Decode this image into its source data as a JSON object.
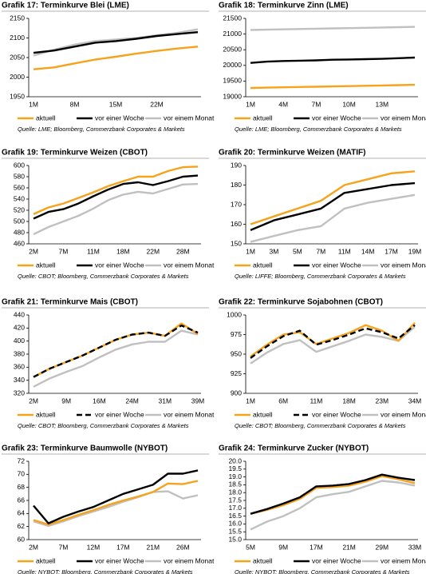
{
  "chart_data": [
    {
      "type": "line",
      "title": "Grafik 17: Terminkurve Blei (LME)",
      "source": "Quelle: LME; Bloomberg, Commerzbank Corporates & Markets",
      "categories": [
        "1M",
        null,
        "8M",
        null,
        "15M",
        null,
        "22M",
        null,
        null
      ],
      "ylim": [
        1950,
        2150
      ],
      "yticks": [
        1950,
        2000,
        2050,
        2100,
        2150
      ],
      "series": [
        {
          "name": "aktuell",
          "color": "#f7a21b",
          "values": [
            2020,
            2025,
            2035,
            2045,
            2052,
            2060,
            2067,
            2073,
            2078
          ]
        },
        {
          "name": "vor einer Woche",
          "color": "#000000",
          "values": [
            2062,
            2068,
            2078,
            2088,
            2092,
            2098,
            2105,
            2110,
            2115
          ]
        },
        {
          "name": "vor einem Monat",
          "color": "#c0c0c0",
          "values": [
            2055,
            2070,
            2083,
            2092,
            2096,
            2100,
            2107,
            2113,
            2122
          ]
        }
      ]
    },
    {
      "type": "line",
      "title": "Grafik 18: Terminkurve Zinn (LME)",
      "source": "Quelle: LME; Bloomberg, Commerzbank Corporates & Markets",
      "categories": [
        "1M",
        null,
        "4M",
        null,
        "7M",
        null,
        "10M",
        null,
        "13M",
        null,
        null
      ],
      "ylim": [
        19000,
        21500
      ],
      "yticks": [
        19000,
        19500,
        20000,
        20500,
        21000,
        21500
      ],
      "series": [
        {
          "name": "aktuell",
          "color": "#f7a21b",
          "values": [
            19280,
            19290,
            19300,
            19310,
            19320,
            19330,
            19340,
            19350,
            19360,
            19370,
            19380
          ]
        },
        {
          "name": "vor einer Woche",
          "color": "#000000",
          "values": [
            20080,
            20120,
            20140,
            20150,
            20160,
            20180,
            20190,
            20200,
            20210,
            20230,
            20250
          ]
        },
        {
          "name": "vor einem Monat",
          "color": "#c0c0c0",
          "values": [
            21130,
            21140,
            21150,
            21160,
            21170,
            21180,
            21190,
            21200,
            21210,
            21220,
            21230
          ]
        }
      ]
    },
    {
      "type": "line",
      "title": "Grafik 19: Terminkurve Weizen (CBOT)",
      "source": "Quelle: CBOT; Bloomberg, Commerzbank Corporates & Markets",
      "categories": [
        "2M",
        null,
        "7M",
        null,
        "11M",
        null,
        "18M",
        null,
        "22M",
        null,
        "28M",
        null
      ],
      "ylim": [
        460,
        600
      ],
      "yticks": [
        460,
        480,
        500,
        520,
        540,
        560,
        580,
        600
      ],
      "series": [
        {
          "name": "aktuell",
          "color": "#f7a21b",
          "values": [
            513,
            525,
            532,
            542,
            552,
            563,
            572,
            580,
            580,
            590,
            597,
            598
          ]
        },
        {
          "name": "vor einer Woche",
          "color": "#000000",
          "values": [
            505,
            517,
            522,
            532,
            545,
            557,
            567,
            570,
            565,
            572,
            580,
            582
          ]
        },
        {
          "name": "vor einem Monat",
          "color": "#c0c0c0",
          "values": [
            477,
            490,
            500,
            510,
            523,
            538,
            548,
            553,
            550,
            558,
            566,
            567
          ]
        }
      ]
    },
    {
      "type": "line",
      "title": "Grafik 20: Terminkurve Weizen (MATIF)",
      "source": "Quelle: LIFFE; Bloomberg, Commerzbank Corporates & Markets",
      "categories": [
        "1M",
        "3M",
        "5M",
        "7M",
        "11M",
        "14M",
        "17M",
        "19M"
      ],
      "ylim": [
        150,
        190
      ],
      "yticks": [
        150,
        160,
        170,
        180,
        190
      ],
      "series": [
        {
          "name": "aktuell",
          "color": "#f7a21b",
          "values": [
            160,
            164,
            168,
            172,
            180,
            183,
            186,
            187
          ]
        },
        {
          "name": "vor einer Woche",
          "color": "#000000",
          "values": [
            157,
            162,
            165,
            168,
            176,
            178,
            180,
            181
          ]
        },
        {
          "name": "vor einem Monat",
          "color": "#c0c0c0",
          "values": [
            151,
            154,
            157,
            159,
            168,
            171,
            173,
            175
          ]
        }
      ]
    },
    {
      "type": "line",
      "title": "Grafik 21: Terminkurve Mais (CBOT)",
      "source": "Quelle: CBOT; Bloomberg, Commerzbank Corporates & Markets",
      "categories": [
        "2M",
        null,
        "9M",
        null,
        "16M",
        null,
        "24M",
        null,
        "31M",
        null,
        "39M"
      ],
      "ylim": [
        320,
        440
      ],
      "yticks": [
        320,
        340,
        360,
        380,
        400,
        420,
        440
      ],
      "series": [
        {
          "name": "aktuell",
          "color": "#f7a21b",
          "values": [
            345,
            358,
            368,
            378,
            390,
            402,
            410,
            413,
            408,
            427,
            411
          ]
        },
        {
          "name": "vor einer Woche",
          "color": "#000000",
          "line_style": "dashed",
          "values": [
            345,
            358,
            368,
            378,
            390,
            402,
            410,
            413,
            408,
            424,
            413
          ]
        },
        {
          "name": "vor einem Monat",
          "color": "#c0c0c0",
          "values": [
            330,
            343,
            353,
            362,
            375,
            387,
            395,
            399,
            399,
            416,
            410
          ]
        }
      ]
    },
    {
      "type": "line",
      "title": "Grafik 22: Terminkurve Sojabohnen (CBOT)",
      "source": "Quelle: CBOT; Bloomberg, Commerzbank Corporates & Markets",
      "categories": [
        "1M",
        null,
        "6M",
        null,
        "11M",
        null,
        "18M",
        null,
        "23M",
        null,
        "34M"
      ],
      "ylim": [
        900,
        1000
      ],
      "yticks": [
        900,
        925,
        950,
        975,
        1000
      ],
      "series": [
        {
          "name": "aktuell",
          "color": "#f7a21b",
          "values": [
            947,
            962,
            975,
            978,
            963,
            970,
            977,
            987,
            980,
            967,
            990
          ]
        },
        {
          "name": "vor einer Woche",
          "color": "#000000",
          "line_style": "dashed",
          "values": [
            945,
            960,
            973,
            980,
            962,
            968,
            975,
            983,
            978,
            970,
            987
          ]
        },
        {
          "name": "vor einem Monat",
          "color": "#c0c0c0",
          "values": [
            938,
            952,
            963,
            968,
            953,
            960,
            967,
            975,
            972,
            967,
            985
          ]
        }
      ]
    },
    {
      "type": "line",
      "title": "Grafik 23: Terminkurve Baumwolle (NYBOT)",
      "source": "Quelle: NYBOT; Bloomberg, Commerzbank Corporates & Markets",
      "categories": [
        "2M",
        null,
        "7M",
        null,
        "12M",
        null,
        "17M",
        null,
        "21M",
        null,
        "26M",
        null
      ],
      "ylim": [
        60,
        72
      ],
      "yticks": [
        60,
        62,
        64,
        66,
        68,
        70,
        72
      ],
      "series": [
        {
          "name": "aktuell",
          "color": "#f7a21b",
          "values": [
            63,
            62.3,
            63,
            63.8,
            64.5,
            65.3,
            66,
            66.6,
            67.3,
            68.6,
            68.5,
            69
          ]
        },
        {
          "name": "vor einer Woche",
          "color": "#000000",
          "values": [
            65.2,
            62.5,
            63.5,
            64.3,
            65,
            66,
            67,
            67.7,
            68.4,
            70.1,
            70.1,
            70.6
          ]
        },
        {
          "name": "vor einem Monat",
          "color": "#c0c0c0",
          "values": [
            62.8,
            62.1,
            62.8,
            63.6,
            64.3,
            65,
            65.8,
            66.5,
            67.3,
            67.4,
            66.3,
            66.8
          ]
        }
      ]
    },
    {
      "type": "line",
      "title": "Grafik 24: Terminkurve Zucker (NYBOT)",
      "source": "Quelle: NYBOT; Bloomberg, Commerzbank Corporates & Markets",
      "categories": [
        "5M",
        null,
        "9M",
        null,
        "17M",
        null,
        "21M",
        null,
        "29M",
        null,
        "33M"
      ],
      "ylim": [
        15,
        20
      ],
      "yticks": [
        {
          "value": 15,
          "label": "15.0"
        },
        15.5,
        {
          "value": 16,
          "label": "16.0"
        },
        16.5,
        {
          "value": 17,
          "label": "17.0"
        },
        17.5,
        {
          "value": 18,
          "label": "18.0"
        },
        18.5,
        {
          "value": 19,
          "label": "19.0"
        },
        19.5,
        {
          "value": 20,
          "label": "20.0"
        }
      ],
      "series": [
        {
          "name": "aktuell",
          "color": "#f7a21b",
          "values": [
            16.65,
            16.9,
            17.2,
            17.6,
            18.3,
            18.35,
            18.45,
            18.7,
            19.05,
            18.85,
            18.6
          ]
        },
        {
          "name": "vor einer Woche",
          "color": "#000000",
          "values": [
            16.65,
            16.95,
            17.3,
            17.7,
            18.4,
            18.45,
            18.55,
            18.8,
            19.15,
            18.95,
            18.8
          ]
        },
        {
          "name": "vor einem Monat",
          "color": "#c0c0c0",
          "values": [
            15.65,
            16.15,
            16.5,
            17.0,
            17.7,
            17.9,
            18.05,
            18.4,
            18.75,
            18.65,
            18.45
          ]
        }
      ]
    }
  ]
}
